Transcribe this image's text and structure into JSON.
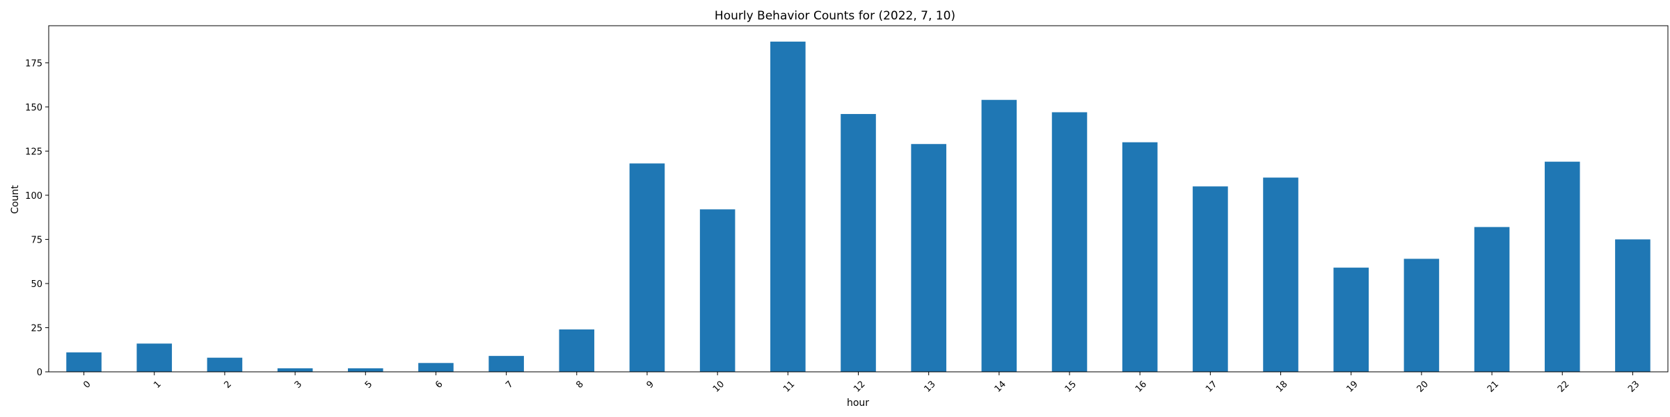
{
  "chart_data": {
    "type": "bar",
    "title": "Hourly Behavior Counts for (2022, 7, 10)",
    "xlabel": "hour",
    "ylabel": "Count",
    "categories": [
      "0",
      "1",
      "2",
      "3",
      "5",
      "6",
      "7",
      "8",
      "9",
      "10",
      "11",
      "12",
      "13",
      "14",
      "15",
      "16",
      "17",
      "18",
      "19",
      "20",
      "21",
      "22",
      "23"
    ],
    "values": [
      11,
      16,
      8,
      2,
      2,
      5,
      9,
      24,
      118,
      92,
      187,
      146,
      129,
      154,
      147,
      130,
      105,
      110,
      59,
      64,
      82,
      119,
      75
    ],
    "ylim": [
      0,
      196
    ],
    "yticks": [
      0,
      25,
      50,
      75,
      100,
      125,
      150,
      175
    ],
    "grid": false,
    "bar_color": "#1f77b4"
  }
}
